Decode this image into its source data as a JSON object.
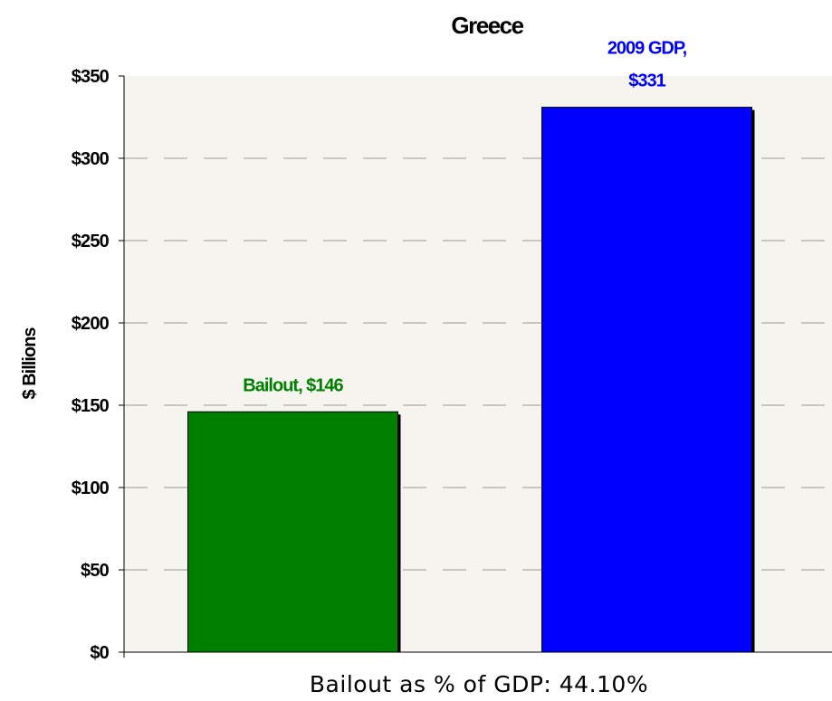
{
  "chart_data": {
    "type": "bar",
    "title": "Greece",
    "ylabel": "$ Billions",
    "xlabel": "",
    "ylim": [
      0,
      350
    ],
    "yticks": [
      0,
      50,
      100,
      150,
      200,
      250,
      300,
      350
    ],
    "ytick_labels": [
      "$0",
      "$50",
      "$100",
      "$150",
      "$200",
      "$250",
      "$300",
      "$350"
    ],
    "grid": "horizontal dashed",
    "bars": [
      {
        "label_lines": [
          "Bailout, $146"
        ],
        "value": 146,
        "color": "#008000"
      },
      {
        "label_lines": [
          "2009 GDP,",
          "$331"
        ],
        "value": 331,
        "color": "#0000ff"
      }
    ]
  },
  "caption": "Bailout as % of GDP:  44.10%",
  "colors": {
    "plot_background": "#f5f4ef",
    "grid": "#9a9a9a"
  }
}
